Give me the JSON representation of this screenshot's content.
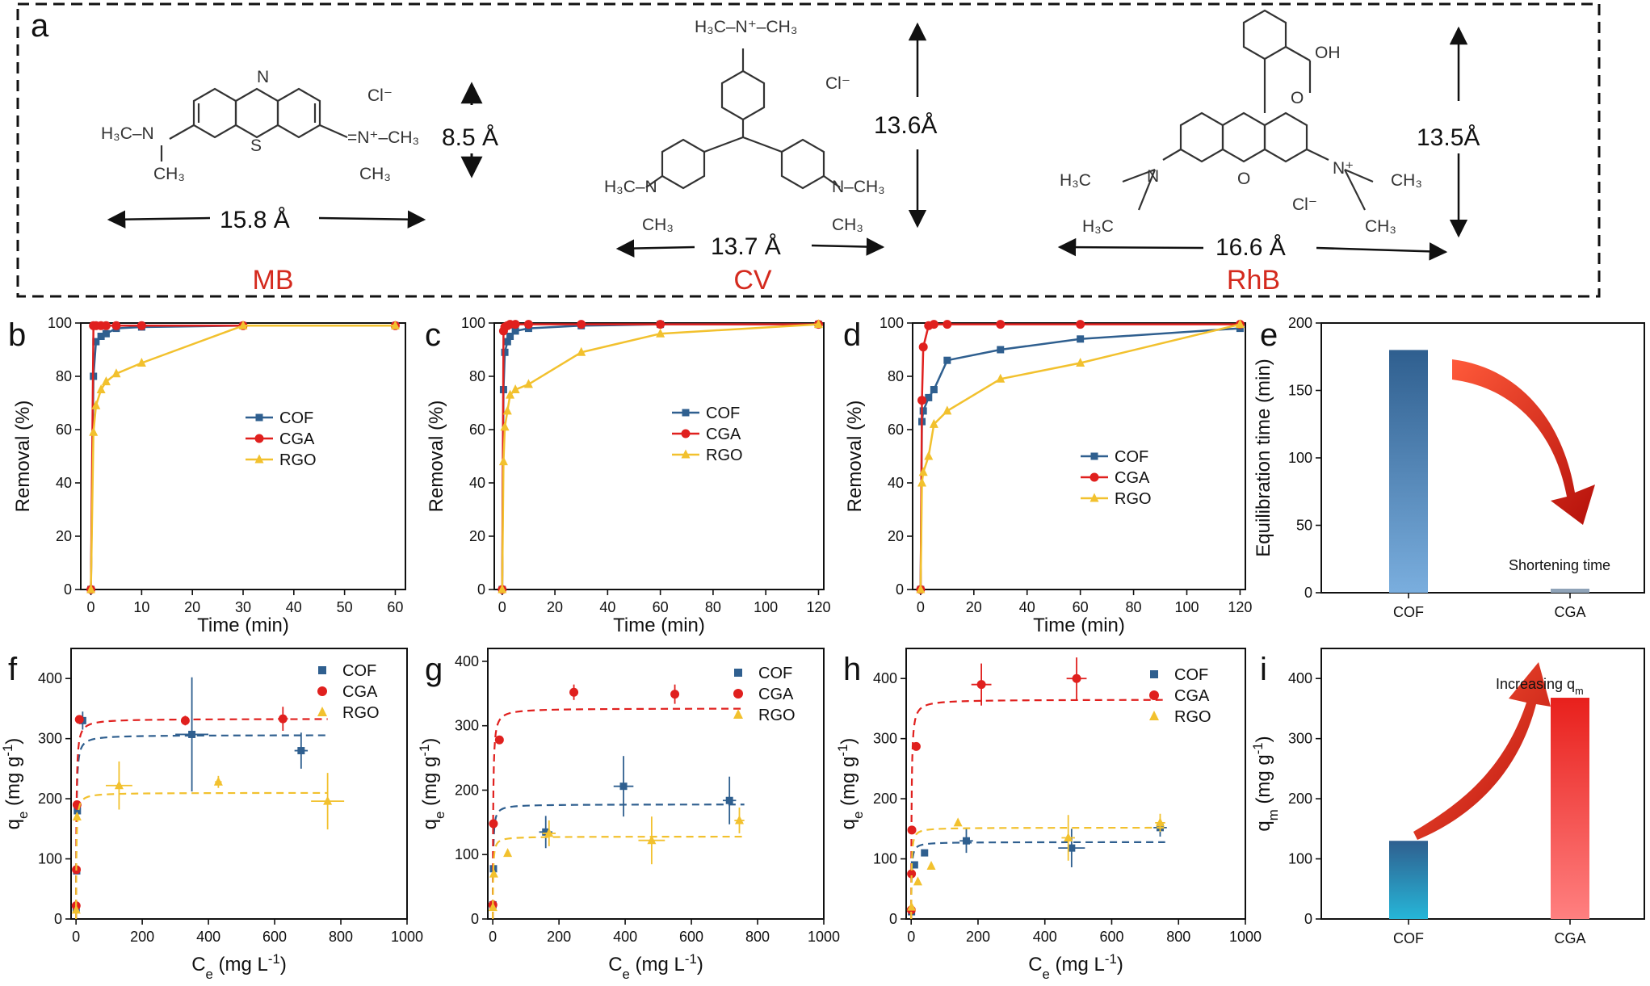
{
  "panel_a": {
    "letter": "a",
    "molecules": [
      {
        "name": "MB",
        "width": "15.8 Å",
        "height": "8.5 Å",
        "counter_ion": "Cl",
        "labels": [
          "H3C–N",
          "CH3",
          "N",
          "S",
          "N+",
          "CH3",
          "CH3"
        ]
      },
      {
        "name": "CV",
        "width": "13.7 Å",
        "height": "13.6Å",
        "counter_ion": "Cl",
        "labels": [
          "H3C",
          "N+",
          "CH3",
          "H3C",
          "N",
          "CH3",
          "N",
          "CH3",
          "CH3"
        ]
      },
      {
        "name": "RhB",
        "width": "16.6 Å",
        "height": "13.5Å",
        "counter_ion": "Cl",
        "labels": [
          "OH",
          "O",
          "H3C",
          "N",
          "O",
          "N+",
          "CH3",
          "H3C",
          "CH3"
        ]
      }
    ]
  },
  "colors": {
    "COF": "#2f5f8f",
    "CGA": "#e0201e",
    "RGO": "#f2c12e"
  },
  "chart_data": [
    {
      "panel": "b",
      "type": "line",
      "xlabel": "Time (min)",
      "ylabel": "Removal (%)",
      "xlim": [
        -2,
        62
      ],
      "ylim": [
        0,
        100
      ],
      "xticks": [
        0,
        10,
        20,
        30,
        40,
        50,
        60
      ],
      "yticks": [
        0,
        20,
        40,
        60,
        80,
        100
      ],
      "legend": "center-right",
      "series": [
        {
          "name": "COF",
          "marker": "square",
          "x": [
            0,
            0.5,
            1,
            2,
            3,
            5,
            10,
            30,
            60
          ],
          "y": [
            0,
            80,
            93,
            95,
            96,
            98,
            98.5,
            99,
            99
          ]
        },
        {
          "name": "CGA",
          "marker": "circle",
          "x": [
            0,
            0.5,
            1,
            2,
            3,
            5,
            10,
            30,
            60
          ],
          "y": [
            0,
            99,
            99,
            99,
            99,
            99,
            99,
            99,
            99
          ]
        },
        {
          "name": "RGO",
          "marker": "triangle",
          "x": [
            0,
            0.5,
            1,
            2,
            3,
            5,
            10,
            30,
            60
          ],
          "y": [
            0,
            59,
            69,
            75,
            78,
            81,
            85,
            99,
            99
          ]
        }
      ]
    },
    {
      "panel": "c",
      "type": "line",
      "xlabel": "Time (min)",
      "ylabel": "Removal (%)",
      "xlim": [
        -3,
        122
      ],
      "ylim": [
        0,
        100
      ],
      "xticks": [
        0,
        20,
        40,
        60,
        80,
        100,
        120
      ],
      "yticks": [
        0,
        20,
        40,
        60,
        80,
        100
      ],
      "legend": "center-right",
      "series": [
        {
          "name": "COF",
          "marker": "square",
          "x": [
            0,
            0.5,
            1,
            2,
            3,
            5,
            10,
            30,
            60,
            120
          ],
          "y": [
            0,
            75,
            89,
            93,
            95,
            97,
            98,
            99,
            99.5,
            99.5
          ]
        },
        {
          "name": "CGA",
          "marker": "circle",
          "x": [
            0,
            0.5,
            1,
            2,
            3,
            5,
            10,
            30,
            60,
            120
          ],
          "y": [
            0,
            97,
            98.5,
            99,
            99.5,
            99.5,
            99.5,
            99.5,
            99.5,
            99.5
          ]
        },
        {
          "name": "RGO",
          "marker": "triangle",
          "x": [
            0,
            0.5,
            1,
            2,
            3,
            5,
            10,
            30,
            60,
            120
          ],
          "y": [
            0,
            48,
            61,
            67,
            73,
            75,
            77,
            89,
            96,
            99.5
          ]
        }
      ]
    },
    {
      "panel": "d",
      "type": "line",
      "xlabel": "Time (min)",
      "ylabel": "Removal (%)",
      "xlim": [
        -3,
        122
      ],
      "ylim": [
        0,
        100
      ],
      "xticks": [
        0,
        20,
        40,
        60,
        80,
        100,
        120
      ],
      "yticks": [
        0,
        20,
        40,
        60,
        80,
        100
      ],
      "legend": "center-right",
      "series": [
        {
          "name": "COF",
          "marker": "square",
          "x": [
            0,
            0.5,
            1,
            3,
            5,
            10,
            30,
            60,
            120
          ],
          "y": [
            0,
            63,
            67,
            72,
            75,
            86,
            90,
            94,
            98
          ]
        },
        {
          "name": "CGA",
          "marker": "circle",
          "x": [
            0,
            0.5,
            1,
            3,
            5,
            10,
            30,
            60,
            120
          ],
          "y": [
            0,
            71,
            91,
            99,
            99.5,
            99.5,
            99.5,
            99.5,
            99.5
          ]
        },
        {
          "name": "RGO",
          "marker": "triangle",
          "x": [
            0,
            0.5,
            1,
            3,
            5,
            10,
            30,
            60,
            120
          ],
          "y": [
            0,
            40,
            44,
            50,
            62,
            67,
            79,
            85,
            99.5
          ]
        }
      ]
    },
    {
      "panel": "e",
      "type": "bar",
      "ylabel": "Equilibration time (min)",
      "categories": [
        "COF",
        "CGA"
      ],
      "values": [
        180,
        3
      ],
      "ylim": [
        0,
        200
      ],
      "yticks": [
        0,
        50,
        100,
        150,
        200
      ],
      "annotation": "Shortening time"
    },
    {
      "panel": "f",
      "type": "scatter",
      "xlabel": "C_e (mg L^-1)",
      "ylabel": "q_e (mg g^-1)",
      "xlim": [
        -15,
        1000
      ],
      "ylim": [
        0,
        450
      ],
      "xticks": [
        0,
        200,
        400,
        600,
        800,
        1000
      ],
      "yticks": [
        0,
        100,
        200,
        300,
        400
      ],
      "legend": "top-right",
      "series": [
        {
          "name": "COF",
          "marker": "square",
          "points": [
            [
              0.5,
              18,
              0,
              3
            ],
            [
              2,
              80,
              0,
              3
            ],
            [
              4,
              180,
              0,
              5
            ],
            [
              20,
              330,
              0,
              15
            ],
            [
              350,
              307,
              50,
              95
            ],
            [
              680,
              280,
              20,
              30
            ]
          ],
          "fit_y": 306
        },
        {
          "name": "CGA",
          "marker": "circle",
          "points": [
            [
              0.3,
              22,
              0,
              3
            ],
            [
              1,
              82,
              0,
              3
            ],
            [
              3,
              190,
              0,
              5
            ],
            [
              10,
              332,
              0,
              5
            ],
            [
              330,
              330,
              10,
              8
            ],
            [
              625,
              333,
              15,
              20
            ]
          ],
          "fit_y": 333
        },
        {
          "name": "RGO",
          "marker": "triangle",
          "points": [
            [
              0.5,
              15,
              0,
              3
            ],
            [
              3,
              170,
              0,
              5
            ],
            [
              130,
              222,
              40,
              40
            ],
            [
              430,
              228,
              10,
              10
            ],
            [
              760,
              196,
              50,
              47
            ]
          ],
          "fit_y": 210
        }
      ]
    },
    {
      "panel": "g",
      "type": "scatter",
      "xlabel": "C_e (mg L^-1)",
      "ylabel": "q_e (mg g^-1)",
      "xlim": [
        -15,
        1000
      ],
      "ylim": [
        0,
        420
      ],
      "xticks": [
        0,
        200,
        400,
        600,
        800,
        1000
      ],
      "yticks": [
        0,
        100,
        200,
        300,
        400
      ],
      "legend": "top-right",
      "series": [
        {
          "name": "COF",
          "marker": "square",
          "points": [
            [
              0.5,
              22,
              0,
              3
            ],
            [
              2,
              78,
              0,
              3
            ],
            [
              160,
              135,
              20,
              25
            ],
            [
              395,
              206,
              30,
              47
            ],
            [
              715,
              184,
              20,
              37
            ]
          ],
          "fit_y": 178
        },
        {
          "name": "CGA",
          "marker": "circle",
          "points": [
            [
              0.3,
              22,
              0,
              3
            ],
            [
              2,
              148,
              0,
              4
            ],
            [
              20,
              278,
              0,
              4
            ],
            [
              245,
              352,
              12,
              12
            ],
            [
              550,
              349,
              12,
              15
            ]
          ],
          "fit_y": 327
        },
        {
          "name": "RGO",
          "marker": "triangle",
          "points": [
            [
              0.5,
              18,
              0,
              3
            ],
            [
              3,
              70,
              0,
              3
            ],
            [
              45,
              102,
              0,
              4
            ],
            [
              170,
              133,
              20,
              20
            ],
            [
              480,
              122,
              40,
              37
            ],
            [
              745,
              153,
              15,
              20
            ]
          ],
          "fit_y": 128
        }
      ]
    },
    {
      "panel": "h",
      "type": "scatter",
      "xlabel": "C_e (mg L^-1)",
      "ylabel": "q_e (mg g^-1)",
      "xlim": [
        -15,
        1000
      ],
      "ylim": [
        0,
        450
      ],
      "xticks": [
        0,
        200,
        400,
        600,
        800,
        1000
      ],
      "yticks": [
        0,
        100,
        200,
        300,
        400
      ],
      "legend": "top-right",
      "series": [
        {
          "name": "COF",
          "marker": "square",
          "points": [
            [
              1,
              12,
              0,
              3
            ],
            [
              10,
              90,
              0,
              4
            ],
            [
              40,
              110,
              0,
              4
            ],
            [
              165,
              130,
              20,
              20
            ],
            [
              480,
              118,
              40,
              32
            ],
            [
              745,
              152,
              20,
              15
            ]
          ],
          "fit_y": 128
        },
        {
          "name": "CGA",
          "marker": "circle",
          "points": [
            [
              0.3,
              15,
              0,
              3
            ],
            [
              1,
              75,
              0,
              3
            ],
            [
              2,
              148,
              0,
              3
            ],
            [
              15,
              287,
              0,
              4
            ],
            [
              210,
              390,
              30,
              35
            ],
            [
              495,
              400,
              30,
              35
            ]
          ],
          "fit_y": 365
        },
        {
          "name": "RGO",
          "marker": "triangle",
          "points": [
            [
              1,
              20,
              0,
              3
            ],
            [
              20,
              62,
              0,
              4
            ],
            [
              60,
              88,
              0,
              4
            ],
            [
              140,
              160,
              0,
              4
            ],
            [
              470,
              135,
              20,
              38
            ],
            [
              745,
              160,
              15,
              15
            ]
          ],
          "fit_y": 152
        }
      ]
    },
    {
      "panel": "i",
      "type": "bar",
      "ylabel": "q_m (mg g^-1)",
      "categories": [
        "COF",
        "CGA"
      ],
      "values": [
        130,
        368
      ],
      "ylim": [
        0,
        450
      ],
      "yticks": [
        0,
        100,
        200,
        300,
        400
      ],
      "annotation": "Increasing q_m"
    }
  ]
}
